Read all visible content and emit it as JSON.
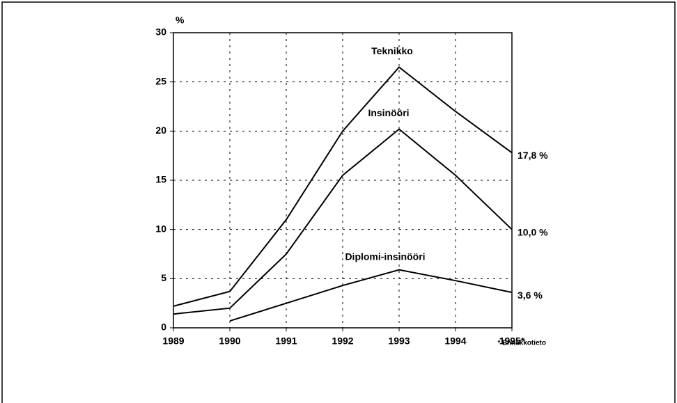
{
  "chart_data": {
    "type": "line",
    "y_unit": "%",
    "categories": [
      "1989",
      "1990",
      "1991",
      "1992",
      "1993",
      "1994",
      "1995*"
    ],
    "series": [
      {
        "name": "Teknikko",
        "color": "#000000",
        "values": [
          2.2,
          3.7,
          11,
          20,
          26.5,
          22,
          17.8
        ],
        "value_labels": [
          null,
          null,
          null,
          null,
          null,
          null,
          "17,8 %"
        ]
      },
      {
        "name": "Insinööri",
        "color": "#000000",
        "values": [
          1.4,
          2.0,
          7.5,
          15.5,
          20.2,
          15.5,
          10.0
        ],
        "value_labels": [
          null,
          null,
          null,
          null,
          null,
          null,
          "10,0 %"
        ]
      },
      {
        "name": "Diplomi-insinööri",
        "color": "#000000",
        "values": [
          null,
          0.7,
          2.5,
          4.3,
          5.9,
          4.8,
          3.6
        ],
        "value_labels": [
          null,
          null,
          null,
          null,
          null,
          null,
          "3,6 %"
        ]
      }
    ],
    "ylim": [
      0,
      30
    ],
    "yticks": [
      0,
      5,
      10,
      15,
      20,
      25,
      30
    ],
    "grid": true,
    "footnote": "* Ennakkotieto"
  }
}
